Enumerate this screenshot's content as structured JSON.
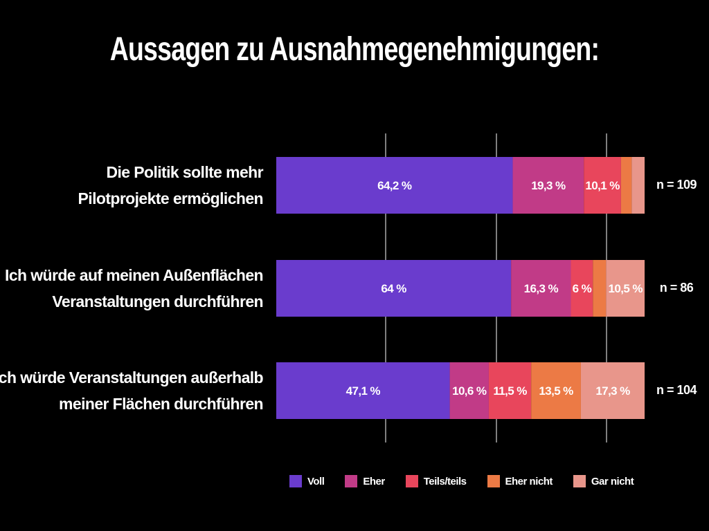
{
  "chart_data": {
    "type": "bar",
    "orientation": "horizontal",
    "stacked": true,
    "title": "Aussagen zu Ausnahmegenehmigungen:",
    "xlim": [
      0,
      100
    ],
    "grid": true,
    "legend_position": "bottom",
    "categories": [
      {
        "lines": [
          "Die Politik sollte mehr",
          "Pilotprojekte ermöglichen"
        ],
        "n_label": "n = 109"
      },
      {
        "lines": [
          "Ich würde auf meinen Außenflächen",
          "Veranstaltungen durchführen"
        ],
        "n_label": "n = 86"
      },
      {
        "lines": [
          "Ich würde Veranstaltungen  außerhalb",
          "meiner Flächen durchführen"
        ],
        "n_label": "n = 104"
      }
    ],
    "series": [
      {
        "name": "Voll",
        "color": "#6a3ccd",
        "values": [
          64.2,
          64,
          47.1
        ],
        "labels": [
          "64,2 %",
          "64 %",
          "47,1 %"
        ]
      },
      {
        "name": "Eher",
        "color": "#c13b87",
        "values": [
          19.3,
          16.3,
          10.6
        ],
        "labels": [
          "19,3 %",
          "16,3 %",
          "10,6 %"
        ]
      },
      {
        "name": "Teils/teils",
        "color": "#e8465c",
        "values": [
          10.1,
          6,
          11.5
        ],
        "labels": [
          "10,1 %",
          "6 %",
          "11,5 %"
        ]
      },
      {
        "name": "Eher nicht",
        "color": "#ec7a45",
        "values": [
          2.9,
          3.6,
          13.5
        ],
        "labels": [
          "",
          "",
          "13,5 %"
        ]
      },
      {
        "name": "Gar nicht",
        "color": "#e8968b",
        "values": [
          3.5,
          10.5,
          17.3
        ],
        "labels": [
          "",
          "10,5 %",
          "17,3 %"
        ]
      }
    ]
  }
}
